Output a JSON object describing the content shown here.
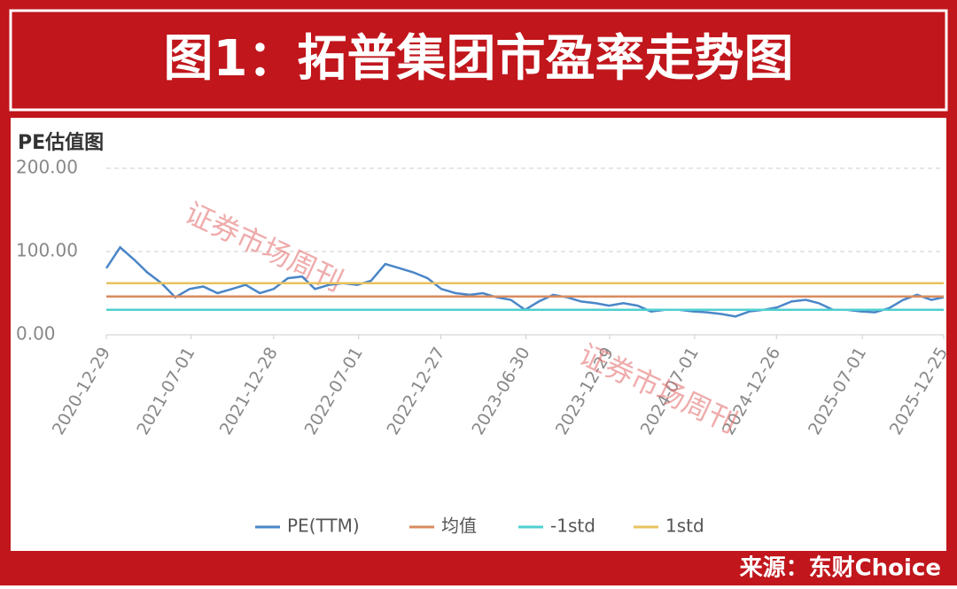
{
  "header": {
    "title": "图1：拓普集团市盈率走势图"
  },
  "chart_data": {
    "type": "line",
    "title": "PE估值图",
    "x": [
      "2020-12-29",
      "2021-01-28",
      "2021-02-28",
      "2021-03-28",
      "2021-04-28",
      "2021-05-28",
      "2021-06-28",
      "2021-07-28",
      "2021-08-28",
      "2021-09-28",
      "2021-10-28",
      "2021-11-28",
      "2021-12-28",
      "2022-01-28",
      "2022-02-28",
      "2022-03-28",
      "2022-04-28",
      "2022-05-28",
      "2022-06-28",
      "2022-07-28",
      "2022-08-28",
      "2022-09-28",
      "2022-10-28",
      "2022-11-28",
      "2022-12-28",
      "2023-01-28",
      "2023-02-28",
      "2023-03-28",
      "2023-04-28",
      "2023-05-28",
      "2023-06-28",
      "2023-07-28",
      "2023-08-28",
      "2023-09-28",
      "2023-10-28",
      "2023-11-28",
      "2023-12-28",
      "2024-01-28",
      "2024-02-28",
      "2024-03-28",
      "2024-04-28",
      "2024-05-28",
      "2024-06-28",
      "2024-07-28",
      "2024-08-28",
      "2024-09-28",
      "2024-10-28",
      "2024-11-28",
      "2024-12-28",
      "2025-01-28",
      "2025-02-28",
      "2025-03-28",
      "2025-04-28",
      "2025-05-28",
      "2025-06-28",
      "2025-07-28",
      "2025-08-28",
      "2025-09-28",
      "2025-10-28",
      "2025-11-28",
      "2025-12-25"
    ],
    "series": [
      {
        "name": "PE(TTM)",
        "color": "#4a86c8",
        "values": [
          80,
          105,
          90,
          75,
          62,
          45,
          55,
          58,
          50,
          55,
          60,
          50,
          55,
          68,
          70,
          55,
          60,
          62,
          60,
          65,
          85,
          80,
          75,
          68,
          55,
          50,
          48,
          50,
          45,
          42,
          30,
          40,
          48,
          45,
          40,
          38,
          35,
          38,
          35,
          28,
          30,
          30,
          28,
          27,
          25,
          22,
          28,
          30,
          33,
          40,
          42,
          38,
          30,
          30,
          28,
          27,
          32,
          42,
          48,
          42,
          45
        ]
      },
      {
        "name": "均值",
        "color": "#d98b5f",
        "value": 46
      },
      {
        "name": "-1std",
        "color": "#4fd0cf",
        "value": 30
      },
      {
        "name": "1std",
        "color": "#e8c25e",
        "value": 62
      }
    ],
    "xlim": [
      "2020-12-29",
      "2025-12-25"
    ],
    "xticks": [
      "2020-12-29",
      "2021-07-01",
      "2021-12-28",
      "2022-07-01",
      "2022-12-27",
      "2023-06-30",
      "2023-12-29",
      "2024-07-01",
      "2024-12-26",
      "2025-07-01",
      "2025-12-25"
    ],
    "ylim": [
      0,
      200
    ],
    "yticks": [
      {
        "value": 0,
        "label": "0.00"
      },
      {
        "value": 100,
        "label": "100.00"
      },
      {
        "value": 200,
        "label": "200.00"
      }
    ],
    "grid": true,
    "legend": "bottom",
    "watermark": [
      "证券市场周刊",
      "证券市场周刊"
    ]
  },
  "footer": {
    "source": "来源：东财Choice"
  }
}
